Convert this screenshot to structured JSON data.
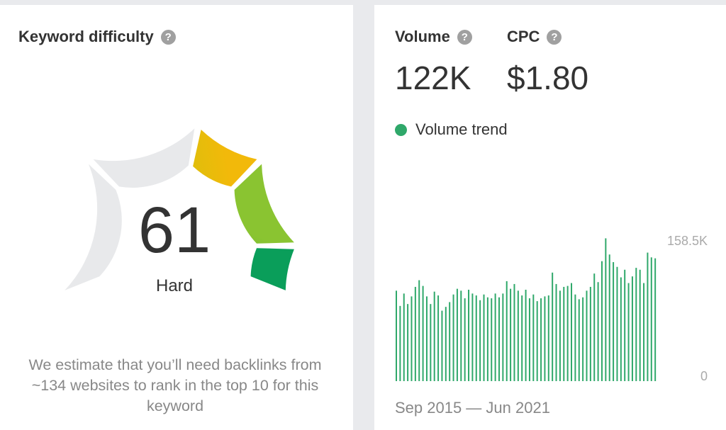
{
  "keyword_difficulty": {
    "title": "Keyword difficulty",
    "help_icon": "?",
    "score": "61",
    "score_value": 61,
    "rating": "Hard",
    "description": "We estimate that you’ll need backlinks from ~134 websites to rank in the top 10 for this keyword",
    "colors": {
      "green": "#0a9e5a",
      "light_green": "#7fc33a",
      "yellow_green": "#bcc21c",
      "orange": "#f2b90a",
      "empty": "#e8e9eb"
    }
  },
  "volume": {
    "title": "Volume",
    "help_icon": "?",
    "value": "122K"
  },
  "cpc": {
    "title": "CPC",
    "help_icon": "?",
    "value": "$1.80"
  },
  "trend": {
    "legend_label": "Volume trend",
    "legend_color": "#2fa86a",
    "date_range": "Sep 2015 — Jun 2021"
  },
  "chart_data": {
    "type": "bar",
    "title": "",
    "xlabel": "",
    "ylabel": "",
    "ylim": [
      0,
      158500
    ],
    "y_tick_labels": [
      "0",
      "158.5K"
    ],
    "x_range": [
      "Sep 2015",
      "Jun 2021"
    ],
    "color": "#2fa86a",
    "values": [
      95000,
      79000,
      92000,
      81000,
      89000,
      99000,
      106000,
      100000,
      89000,
      81000,
      94000,
      90000,
      74000,
      78000,
      83000,
      91000,
      97000,
      95000,
      87000,
      96000,
      92000,
      90000,
      85000,
      91000,
      88000,
      87000,
      92000,
      88000,
      92000,
      105000,
      97000,
      102000,
      95000,
      90000,
      96000,
      87000,
      91000,
      84000,
      87000,
      89000,
      90000,
      114000,
      102000,
      95000,
      99000,
      100000,
      103000,
      91000,
      86000,
      88000,
      95000,
      99000,
      113000,
      104000,
      126000,
      150000,
      133000,
      125000,
      120000,
      109000,
      117000,
      103000,
      110000,
      119000,
      117000,
      103000,
      135000,
      130000,
      129000
    ]
  }
}
